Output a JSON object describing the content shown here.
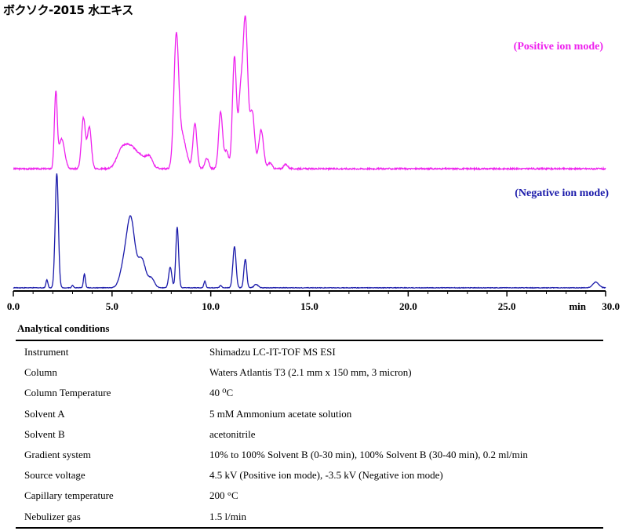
{
  "title": "ボクソク-2015 水エキス",
  "chart_data": {
    "type": "line",
    "x_unit": "min",
    "xlim": [
      0.0,
      30.0
    ],
    "x_ticks": [
      "0.0",
      "5.0",
      "10.0",
      "15.0",
      "20.0",
      "25.0",
      "30.0"
    ],
    "x_tick_values": [
      0,
      5,
      10,
      15,
      20,
      25,
      30
    ],
    "grid": false,
    "series": [
      {
        "name": "(Positive ion mode)",
        "color": "#ee22ee",
        "baseline": 2,
        "peaks": [
          [
            2.15,
            50,
            0.07
          ],
          [
            2.45,
            20,
            0.15
          ],
          [
            3.55,
            34,
            0.1
          ],
          [
            3.85,
            28,
            0.1
          ],
          [
            5.4,
            5,
            0.2
          ],
          [
            5.8,
            15,
            0.35
          ],
          [
            6.5,
            7,
            0.35
          ],
          [
            6.9,
            5,
            0.15
          ],
          [
            8.25,
            84,
            0.12
          ],
          [
            8.55,
            22,
            0.2
          ],
          [
            9.2,
            30,
            0.1
          ],
          [
            9.8,
            7,
            0.1
          ],
          [
            10.5,
            38,
            0.1
          ],
          [
            10.8,
            12,
            0.1
          ],
          [
            11.2,
            75,
            0.1
          ],
          [
            11.5,
            45,
            0.1
          ],
          [
            11.75,
            100,
            0.12
          ],
          [
            12.1,
            38,
            0.12
          ],
          [
            12.55,
            26,
            0.12
          ],
          [
            13.0,
            4,
            0.1
          ],
          [
            13.8,
            3,
            0.1
          ]
        ]
      },
      {
        "name": "(Negative ion mode)",
        "color": "#1a1aaa",
        "baseline": 1,
        "peaks": [
          [
            1.7,
            7,
            0.05
          ],
          [
            2.2,
            100,
            0.08
          ],
          [
            3.0,
            2,
            0.05
          ],
          [
            3.6,
            12,
            0.05
          ],
          [
            5.6,
            18,
            0.2
          ],
          [
            5.95,
            58,
            0.2
          ],
          [
            6.5,
            25,
            0.2
          ],
          [
            7.0,
            8,
            0.15
          ],
          [
            7.95,
            18,
            0.08
          ],
          [
            8.3,
            53,
            0.07
          ],
          [
            9.7,
            6,
            0.05
          ],
          [
            10.5,
            2,
            0.05
          ],
          [
            11.2,
            36,
            0.08
          ],
          [
            11.75,
            25,
            0.07
          ],
          [
            12.3,
            3,
            0.1
          ],
          [
            29.5,
            5,
            0.15
          ]
        ]
      }
    ]
  },
  "conditions": {
    "title": "Analytical conditions",
    "rows": [
      {
        "label": "Instrument",
        "value": "Shimadzu LC-IT-TOF MS ESI"
      },
      {
        "label": "Column",
        "value": "Waters Atlantis T3 (2.1 mm x 150 mm, 3 micron)"
      },
      {
        "label": "Column Temperature",
        "value": "40 ⁰C"
      },
      {
        "label": "Solvent A",
        "value": "5 mM Ammonium acetate solution"
      },
      {
        "label": "Solvent B",
        "value": "acetonitrile"
      },
      {
        "label": "Gradient system",
        "value": "10% to 100% Solvent B (0-30 min), 100% Solvent B (30-40 min), 0.2 ml/min"
      },
      {
        "label": "Source voltage",
        "value": "4.5 kV (Positive ion mode), -3.5 kV (Negative ion mode)"
      },
      {
        "label": "Capillary temperature",
        "value": "200 °C"
      },
      {
        "label": "Nebulizer gas",
        "value": "1.5 l/min"
      }
    ]
  }
}
